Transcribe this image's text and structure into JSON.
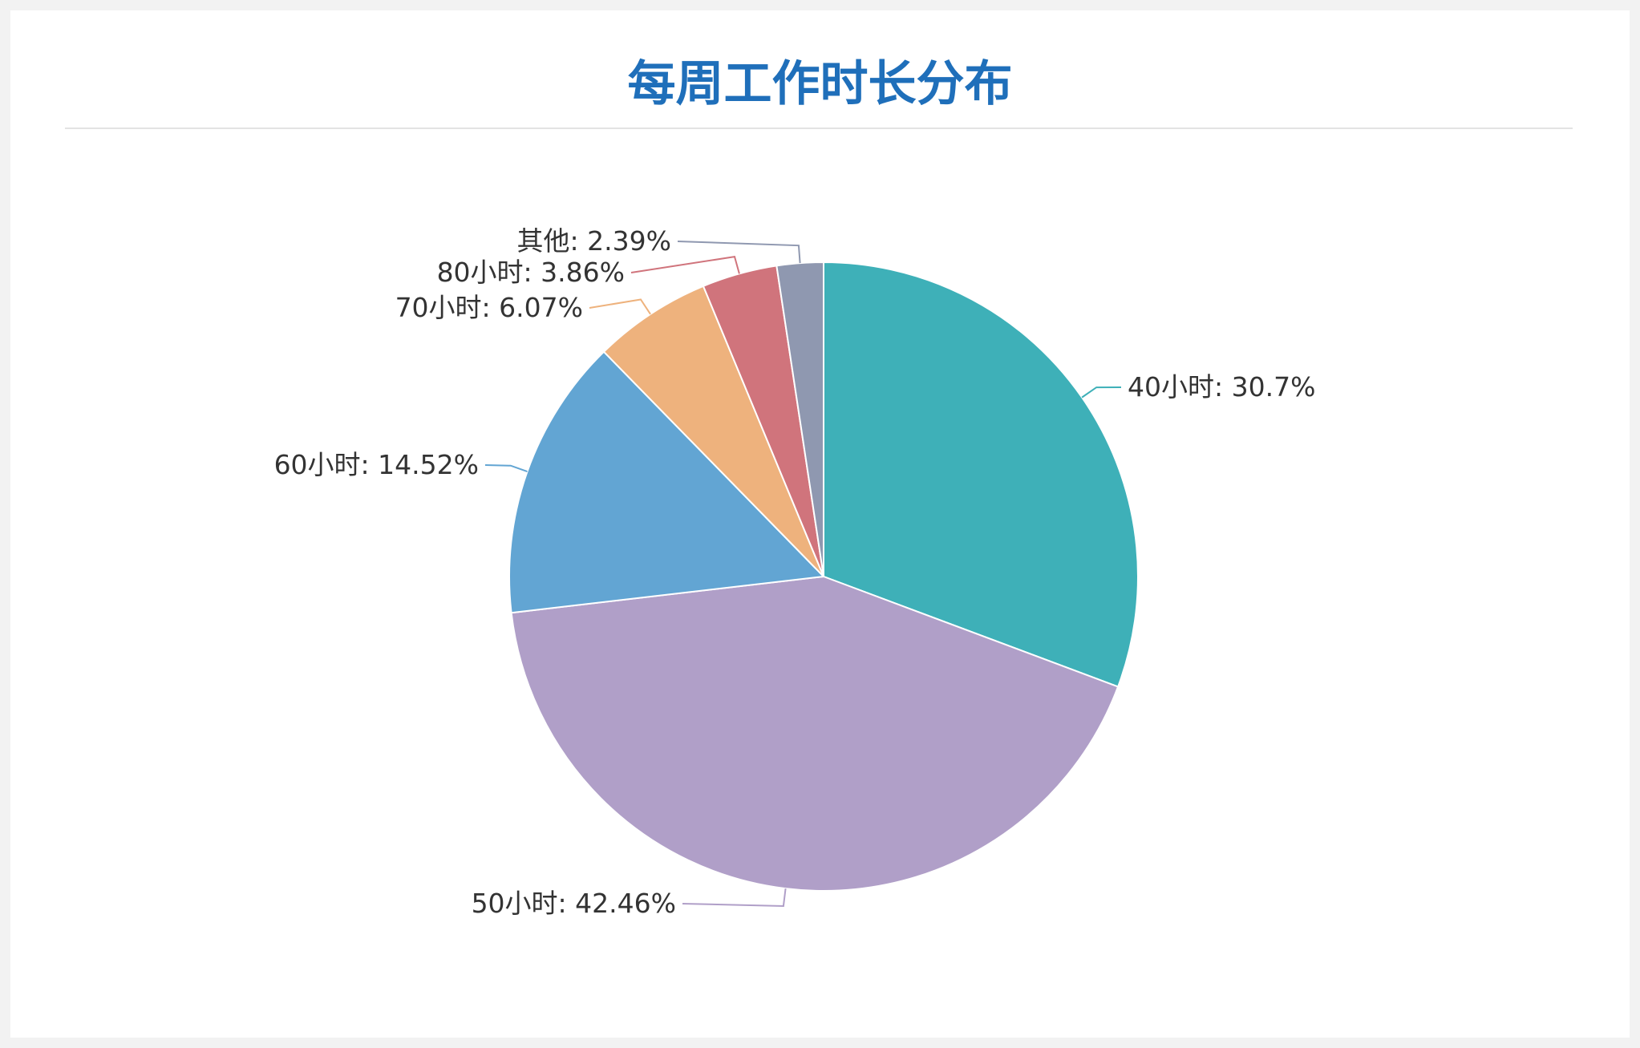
{
  "chart_data": {
    "type": "pie",
    "title": "每周工作时长分布",
    "slices": [
      {
        "name": "40小时",
        "value": 30.7,
        "label": "40小时: 30.7%",
        "color": "#3eb0b8"
      },
      {
        "name": "50小时",
        "value": 42.46,
        "label": "50小时: 42.46%",
        "color": "#b09fc8"
      },
      {
        "name": "60小时",
        "value": 14.52,
        "label": "60小时: 14.52%",
        "color": "#62a5d3"
      },
      {
        "name": "70小时",
        "value": 6.07,
        "label": "70小时: 6.07%",
        "color": "#eeb27d"
      },
      {
        "name": "80小时",
        "value": 3.86,
        "label": "80小时: 3.86%",
        "color": "#d0747c"
      },
      {
        "name": "其他",
        "value": 2.39,
        "label": "其他: 2.39%",
        "color": "#8f98b0"
      }
    ],
    "start_angle": "12 o'clock",
    "direction": "clockwise",
    "legend": "none"
  }
}
